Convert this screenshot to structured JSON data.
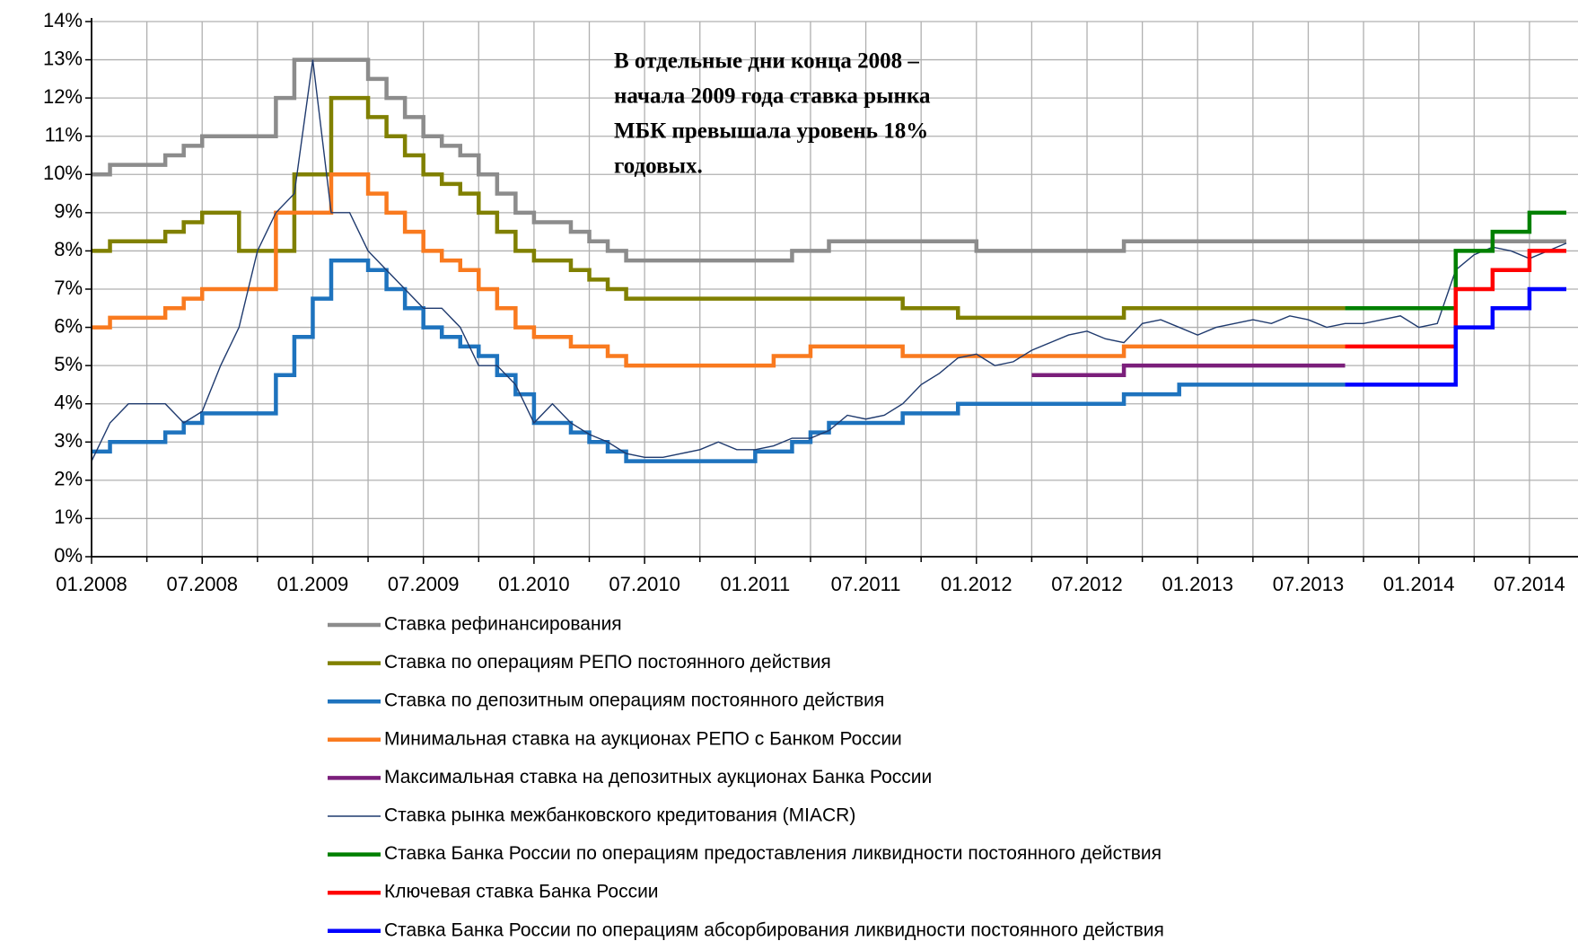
{
  "chart_data": {
    "type": "line",
    "annotation": [
      "В отдельные дни конца 2008 –",
      "начала 2009 года ставка рынка",
      "МБК превышала уровень 18%",
      "годовых."
    ],
    "xlim": [
      "2008-01",
      "2014-09"
    ],
    "xticks": [
      {
        "value": "2008-01",
        "label": "01.2008"
      },
      {
        "value": "2008-07",
        "label": "07.2008"
      },
      {
        "value": "2009-01",
        "label": "01.2009"
      },
      {
        "value": "2009-07",
        "label": "07.2009"
      },
      {
        "value": "2010-01",
        "label": "01.2010"
      },
      {
        "value": "2010-07",
        "label": "07.2010"
      },
      {
        "value": "2011-01",
        "label": "01.2011"
      },
      {
        "value": "2011-07",
        "label": "07.2011"
      },
      {
        "value": "2012-01",
        "label": "01.2012"
      },
      {
        "value": "2012-07",
        "label": "07.2012"
      },
      {
        "value": "2013-01",
        "label": "01.2013"
      },
      {
        "value": "2013-07",
        "label": "07.2013"
      },
      {
        "value": "2014-01",
        "label": "01.2014"
      },
      {
        "value": "2014-07",
        "label": "07.2014"
      }
    ],
    "xminorticks": [
      "2008-04",
      "2008-10",
      "2009-04",
      "2009-10",
      "2010-04",
      "2010-10",
      "2011-04",
      "2011-10",
      "2012-04",
      "2012-10",
      "2013-04",
      "2013-10",
      "2014-04"
    ],
    "ylim": [
      0,
      14
    ],
    "yticks": [
      {
        "value": 0,
        "label": "0%"
      },
      {
        "value": 1,
        "label": "1%"
      },
      {
        "value": 2,
        "label": "2%"
      },
      {
        "value": 3,
        "label": "3%"
      },
      {
        "value": 4,
        "label": "4%"
      },
      {
        "value": 5,
        "label": "5%"
      },
      {
        "value": 6,
        "label": "6%"
      },
      {
        "value": 7,
        "label": "7%"
      },
      {
        "value": 8,
        "label": "8%"
      },
      {
        "value": 9,
        "label": "9%"
      },
      {
        "value": 10,
        "label": "10%"
      },
      {
        "value": 11,
        "label": "11%"
      },
      {
        "value": 12,
        "label": "12%"
      },
      {
        "value": 13,
        "label": "13%"
      },
      {
        "value": 14,
        "label": "14%"
      }
    ],
    "grid": true,
    "legend": "bottom",
    "series": [
      {
        "name": "Ставка рефинансирования",
        "color": "#8c8c8c",
        "step": true,
        "linewidth": 4.5,
        "x": [
          "2008-01",
          "2008-02",
          "2008-05",
          "2008-06",
          "2008-07",
          "2008-11",
          "2008-12",
          "2009-04",
          "2009-05",
          "2009-06",
          "2009-07",
          "2009-08",
          "2009-09",
          "2009-10",
          "2009-11",
          "2009-12",
          "2010-01",
          "2010-03",
          "2010-04",
          "2010-05",
          "2010-06",
          "2011-03",
          "2011-05",
          "2012-01",
          "2012-09",
          "2014-09"
        ],
        "values": [
          10,
          10.25,
          10.5,
          10.75,
          11,
          12,
          13,
          12.5,
          12,
          11.5,
          11,
          10.75,
          10.5,
          10,
          9.5,
          9,
          8.75,
          8.5,
          8.25,
          8,
          7.75,
          8,
          8.25,
          8,
          8.25,
          8.25
        ]
      },
      {
        "name": "Ставка по операциям РЕПО постоянного действия",
        "color": "#808000",
        "step": true,
        "linewidth": 4.5,
        "x": [
          "2008-01",
          "2008-02",
          "2008-05",
          "2008-06",
          "2008-07",
          "2008-09",
          "2008-12",
          "2009-02",
          "2009-04",
          "2009-05",
          "2009-06",
          "2009-07",
          "2009-08",
          "2009-09",
          "2009-10",
          "2009-11",
          "2009-12",
          "2010-01",
          "2010-03",
          "2010-04",
          "2010-05",
          "2010-06",
          "2011-09",
          "2011-12",
          "2012-09",
          "2013-09"
        ],
        "values": [
          8,
          8.25,
          8.5,
          8.75,
          9,
          8,
          10,
          12,
          11.5,
          11,
          10.5,
          10,
          9.75,
          9.5,
          9,
          8.5,
          8,
          7.75,
          7.5,
          7.25,
          7,
          6.75,
          6.5,
          6.25,
          6.5,
          6.5
        ]
      },
      {
        "name": "Ставка по депозитным операциям постоянного действия",
        "color": "#1e73be",
        "step": true,
        "linewidth": 4.5,
        "x": [
          "2008-01",
          "2008-02",
          "2008-05",
          "2008-06",
          "2008-07",
          "2008-11",
          "2008-12",
          "2009-01",
          "2009-02",
          "2009-04",
          "2009-05",
          "2009-06",
          "2009-07",
          "2009-08",
          "2009-09",
          "2009-10",
          "2009-11",
          "2009-12",
          "2010-01",
          "2010-03",
          "2010-04",
          "2010-05",
          "2010-06",
          "2011-01",
          "2011-03",
          "2011-04",
          "2011-05",
          "2011-09",
          "2011-12",
          "2012-09",
          "2012-12",
          "2013-09"
        ],
        "values": [
          2.75,
          3,
          3.25,
          3.5,
          3.75,
          4.75,
          5.75,
          6.75,
          7.75,
          7.5,
          7,
          6.5,
          6,
          5.75,
          5.5,
          5.25,
          4.75,
          4.25,
          3.5,
          3.25,
          3,
          2.75,
          2.5,
          2.75,
          3,
          3.25,
          3.5,
          3.75,
          4,
          4.25,
          4.5,
          4.5
        ]
      },
      {
        "name": "Минимальная ставка на аукционах РЕПО с Банком России",
        "color": "#f97a1f",
        "step": true,
        "linewidth": 4.5,
        "x": [
          "2008-01",
          "2008-02",
          "2008-05",
          "2008-06",
          "2008-07",
          "2008-11",
          "2009-02",
          "2009-04",
          "2009-05",
          "2009-06",
          "2009-07",
          "2009-08",
          "2009-09",
          "2009-10",
          "2009-11",
          "2009-12",
          "2010-01",
          "2010-03",
          "2010-05",
          "2010-06",
          "2011-02",
          "2011-04",
          "2011-09",
          "2012-09",
          "2013-09"
        ],
        "values": [
          6,
          6.25,
          6.5,
          6.75,
          7,
          9,
          10,
          9.5,
          9,
          8.5,
          8,
          7.75,
          7.5,
          7,
          6.5,
          6,
          5.75,
          5.5,
          5.25,
          5,
          5.25,
          5.5,
          5.25,
          5.5,
          5.5
        ]
      },
      {
        "name": "Максимальная ставка на депозитных аукционах Банка России",
        "color": "#7b1f7b",
        "step": true,
        "linewidth": 4.5,
        "x": [
          "2012-04",
          "2012-09",
          "2013-09"
        ],
        "values": [
          4.75,
          5,
          5
        ]
      },
      {
        "name": "Ставка рынка межбанковского кредитования (MIACR)",
        "color": "#1f3a6e",
        "step": false,
        "linewidth": 1.4,
        "x": [
          "2008-01",
          "2008-02",
          "2008-03",
          "2008-04",
          "2008-05",
          "2008-06",
          "2008-07",
          "2008-08",
          "2008-09",
          "2008-10",
          "2008-11",
          "2008-12",
          "2009-01",
          "2009-02",
          "2009-03",
          "2009-04",
          "2009-05",
          "2009-06",
          "2009-07",
          "2009-08",
          "2009-09",
          "2009-10",
          "2009-11",
          "2009-12",
          "2010-01",
          "2010-02",
          "2010-03",
          "2010-04",
          "2010-05",
          "2010-06",
          "2010-07",
          "2010-08",
          "2010-09",
          "2010-10",
          "2010-11",
          "2010-12",
          "2011-01",
          "2011-02",
          "2011-03",
          "2011-04",
          "2011-05",
          "2011-06",
          "2011-07",
          "2011-08",
          "2011-09",
          "2011-10",
          "2011-11",
          "2011-12",
          "2012-01",
          "2012-02",
          "2012-03",
          "2012-04",
          "2012-05",
          "2012-06",
          "2012-07",
          "2012-08",
          "2012-09",
          "2012-10",
          "2012-11",
          "2012-12",
          "2013-01",
          "2013-02",
          "2013-03",
          "2013-04",
          "2013-05",
          "2013-06",
          "2013-07",
          "2013-08",
          "2013-09",
          "2013-10",
          "2013-11",
          "2013-12",
          "2014-01",
          "2014-02",
          "2014-03",
          "2014-04",
          "2014-05",
          "2014-06",
          "2014-07",
          "2014-08",
          "2014-09"
        ],
        "values": [
          2.5,
          3.5,
          4,
          4,
          4,
          3.5,
          3.8,
          5,
          6,
          8,
          9,
          9.5,
          13,
          9,
          9,
          8,
          7.5,
          7,
          6.5,
          6.5,
          6,
          5,
          5,
          4.5,
          3.5,
          4,
          3.5,
          3.2,
          3,
          2.7,
          2.6,
          2.6,
          2.7,
          2.8,
          3,
          2.8,
          2.8,
          2.9,
          3.1,
          3.1,
          3.3,
          3.7,
          3.6,
          3.7,
          4,
          4.5,
          4.8,
          5.2,
          5.3,
          5,
          5.1,
          5.4,
          5.6,
          5.8,
          5.9,
          5.7,
          5.6,
          6.1,
          6.2,
          6,
          5.8,
          6,
          6.1,
          6.2,
          6.1,
          6.3,
          6.2,
          6,
          6.1,
          6.1,
          6.2,
          6.3,
          6,
          6.1,
          7.5,
          7.9,
          8.1,
          8,
          7.8,
          8,
          8.2
        ]
      },
      {
        "name": "Ставка Банка России по операциям предоставления ликвидности постоянного действия",
        "color": "#008000",
        "step": true,
        "linewidth": 4.5,
        "x": [
          "2013-09",
          "2014-03",
          "2014-05",
          "2014-07",
          "2014-09"
        ],
        "values": [
          6.5,
          8,
          8.5,
          9,
          9
        ]
      },
      {
        "name": "Ключевая ставка Банка России",
        "color": "#ff0000",
        "step": true,
        "linewidth": 4.5,
        "x": [
          "2013-09",
          "2014-03",
          "2014-05",
          "2014-07",
          "2014-09"
        ],
        "values": [
          5.5,
          7,
          7.5,
          8,
          8
        ]
      },
      {
        "name": "Ставка Банка России по операциям абсорбирования ликвидности постоянного действия",
        "color": "#0000ff",
        "step": true,
        "linewidth": 4.5,
        "x": [
          "2013-09",
          "2014-03",
          "2014-05",
          "2014-07",
          "2014-09"
        ],
        "values": [
          4.5,
          6,
          6.5,
          7,
          7
        ]
      }
    ]
  }
}
